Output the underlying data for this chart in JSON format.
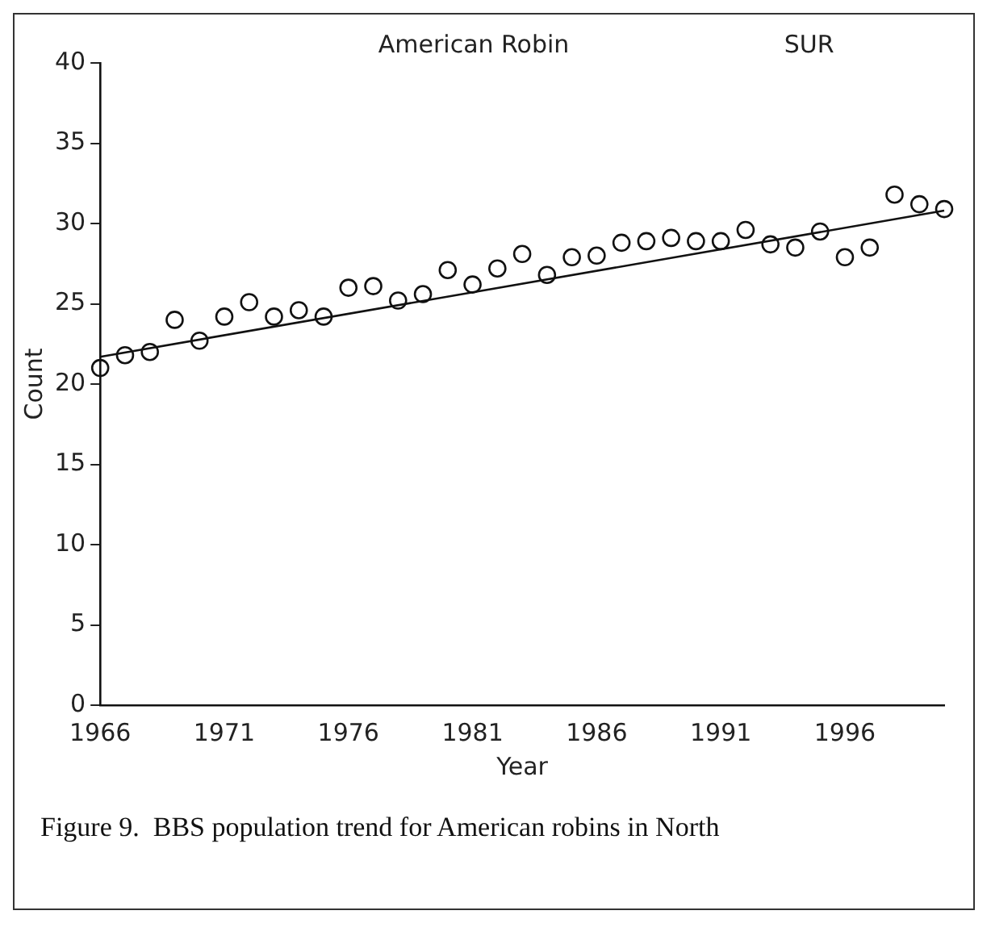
{
  "chart_data": {
    "type": "scatter",
    "title": "American Robin",
    "subtitle": "SUR",
    "xlabel": "Year",
    "ylabel": "Count",
    "annotations": [
      "Figure 9.  BBS population trend for American robins in North"
    ],
    "x": [
      1966,
      1967,
      1968,
      1969,
      1970,
      1971,
      1972,
      1973,
      1974,
      1975,
      1976,
      1977,
      1978,
      1979,
      1980,
      1981,
      1982,
      1983,
      1984,
      1985,
      1986,
      1987,
      1988,
      1989,
      1990,
      1991,
      1992,
      1993,
      1994,
      1995,
      1996,
      1997,
      1998,
      1999,
      2000
    ],
    "series": [
      {
        "type": "scatter",
        "color": "#111111",
        "marker": "circle",
        "values": [
          21.0,
          21.8,
          22.0,
          24.0,
          22.7,
          24.2,
          25.1,
          24.2,
          24.6,
          24.2,
          26.0,
          26.1,
          25.2,
          25.6,
          27.1,
          26.2,
          27.2,
          28.1,
          26.8,
          27.9,
          28.0,
          28.8,
          28.9,
          29.1,
          28.9,
          28.9,
          29.6,
          28.7,
          28.5,
          29.5,
          27.9,
          28.5,
          31.8,
          31.2,
          30.9
        ]
      },
      {
        "type": "line",
        "color": "#111111",
        "marker": "none",
        "x": [
          1966,
          2000
        ],
        "values": [
          21.7,
          30.8
        ]
      }
    ],
    "xlim": [
      1966,
      2000
    ],
    "xticks": [
      1966,
      1971,
      1976,
      1981,
      1986,
      1991,
      1996
    ],
    "ylim": [
      0,
      40
    ],
    "yticks": [
      0,
      5,
      10,
      15,
      20,
      25,
      30,
      35,
      40
    ],
    "grid": false,
    "legend": false
  }
}
